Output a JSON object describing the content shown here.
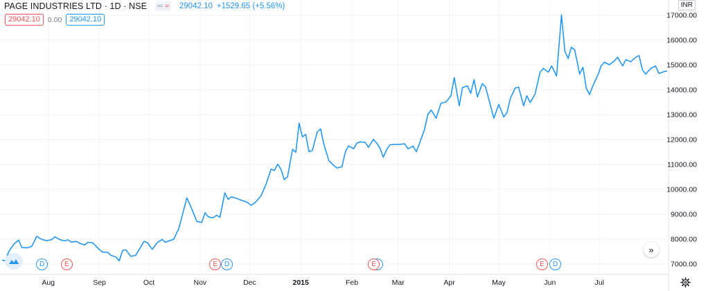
{
  "header": {
    "symbol": "PAGE INDUSTRIES LTD · 1D · NSE",
    "last_value": "29042.10",
    "change": "+1529.65 (+5.56%)",
    "currency": "INR"
  },
  "legend_row": {
    "red_value": "29042.10",
    "zero_value": "0.00",
    "blue_value": "29042.10"
  },
  "icons": {
    "eye": "eye-toggle-icon",
    "indicator": "wave-icon",
    "logo": "cloud-logo-icon",
    "scroll": "double-chevron-right-icon",
    "settings": "gear-icon"
  },
  "colors": {
    "line": "#2196f3",
    "grid": "#f0f3fa",
    "axis_text": "#131722",
    "dividend": "#2196f3",
    "earnings": "#ef5350"
  },
  "scroll_label": "»",
  "event_markers": [
    {
      "label": "D",
      "date": "2014-07-28"
    },
    {
      "label": "E",
      "date": "2014-08-12"
    },
    {
      "label": "E",
      "date": "2014-11-10"
    },
    {
      "label": "D",
      "date": "2014-11-17"
    },
    {
      "label": "D",
      "date": "2015-02-16"
    },
    {
      "label": "E",
      "date": "2015-02-14"
    },
    {
      "label": "E",
      "date": "2015-05-27"
    },
    {
      "label": "D",
      "date": "2015-06-04"
    }
  ],
  "chart_data": {
    "type": "line",
    "title": "",
    "xlabel": "",
    "ylabel": "",
    "ylim": [
      6600,
      17600
    ],
    "grid": true,
    "y_ticks": [
      "7000.00",
      "8000.00",
      "9000.00",
      "10000.00",
      "11000.00",
      "12000.00",
      "13000.00",
      "14000.00",
      "15000.00",
      "16000.00",
      "17000.00"
    ],
    "x_ticks": [
      {
        "label": "Aug",
        "date": "2014-08-01"
      },
      {
        "label": "Sep",
        "date": "2014-09-01"
      },
      {
        "label": "Oct",
        "date": "2014-10-01"
      },
      {
        "label": "Nov",
        "date": "2014-11-01"
      },
      {
        "label": "Dec",
        "date": "2014-12-01"
      },
      {
        "label": "2015",
        "date": "2015-01-01"
      },
      {
        "label": "Feb",
        "date": "2015-02-01"
      },
      {
        "label": "Mar",
        "date": "2015-03-01"
      },
      {
        "label": "Apr",
        "date": "2015-04-01"
      },
      {
        "label": "May",
        "date": "2015-05-01"
      },
      {
        "label": "Jun",
        "date": "2015-06-01"
      },
      {
        "label": "Jul",
        "date": "2015-07-01"
      }
    ],
    "series": [
      {
        "color": "#2196f3",
        "points": [
          [
            "2014-07-04",
            7150
          ],
          [
            "2014-07-06",
            7120
          ],
          [
            "2014-07-08",
            7480
          ],
          [
            "2014-07-11",
            7780
          ],
          [
            "2014-07-14",
            7950
          ],
          [
            "2014-07-16",
            7650
          ],
          [
            "2014-07-19",
            7640
          ],
          [
            "2014-07-22",
            7700
          ],
          [
            "2014-07-25",
            8100
          ],
          [
            "2014-07-28",
            7980
          ],
          [
            "2014-07-31",
            7930
          ],
          [
            "2014-08-03",
            7970
          ],
          [
            "2014-08-05",
            8080
          ],
          [
            "2014-08-08",
            7970
          ],
          [
            "2014-08-11",
            7920
          ],
          [
            "2014-08-13",
            7960
          ],
          [
            "2014-08-15",
            7870
          ],
          [
            "2014-08-18",
            7900
          ],
          [
            "2014-08-20",
            7820
          ],
          [
            "2014-08-23",
            7760
          ],
          [
            "2014-08-25",
            7860
          ],
          [
            "2014-08-28",
            7840
          ],
          [
            "2014-09-01",
            7570
          ],
          [
            "2014-09-03",
            7470
          ],
          [
            "2014-09-06",
            7460
          ],
          [
            "2014-09-08",
            7340
          ],
          [
            "2014-09-11",
            7270
          ],
          [
            "2014-09-13",
            7120
          ],
          [
            "2014-09-15",
            7530
          ],
          [
            "2014-09-17",
            7560
          ],
          [
            "2014-09-20",
            7300
          ],
          [
            "2014-09-23",
            7340
          ],
          [
            "2014-09-25",
            7560
          ],
          [
            "2014-09-28",
            7900
          ],
          [
            "2014-09-30",
            7850
          ],
          [
            "2014-10-03",
            7580
          ],
          [
            "2014-10-06",
            7850
          ],
          [
            "2014-10-09",
            7980
          ],
          [
            "2014-10-11",
            7860
          ],
          [
            "2014-10-13",
            7920
          ],
          [
            "2014-10-16",
            7980
          ],
          [
            "2014-10-19",
            8400
          ],
          [
            "2014-10-21",
            8900
          ],
          [
            "2014-10-24",
            9650
          ],
          [
            "2014-10-27",
            9200
          ],
          [
            "2014-10-30",
            8700
          ],
          [
            "2014-11-02",
            8660
          ],
          [
            "2014-11-04",
            9050
          ],
          [
            "2014-11-06",
            8880
          ],
          [
            "2014-11-09",
            8850
          ],
          [
            "2014-11-11",
            8950
          ],
          [
            "2014-11-13",
            8870
          ],
          [
            "2014-11-16",
            9850
          ],
          [
            "2014-11-18",
            9590
          ],
          [
            "2014-11-20",
            9690
          ],
          [
            "2014-11-23",
            9630
          ],
          [
            "2014-11-26",
            9550
          ],
          [
            "2014-11-29",
            9490
          ],
          [
            "2014-12-02",
            9350
          ],
          [
            "2014-12-05",
            9500
          ],
          [
            "2014-12-08",
            9740
          ],
          [
            "2014-12-11",
            10200
          ],
          [
            "2014-12-14",
            10800
          ],
          [
            "2014-12-16",
            10750
          ],
          [
            "2014-12-18",
            11000
          ],
          [
            "2014-12-20",
            10800
          ],
          [
            "2014-12-22",
            10380
          ],
          [
            "2014-12-24",
            10500
          ],
          [
            "2014-12-27",
            11600
          ],
          [
            "2014-12-29",
            11480
          ],
          [
            "2014-12-31",
            12650
          ],
          [
            "2015-01-02",
            12100
          ],
          [
            "2015-01-04",
            12200
          ],
          [
            "2015-01-06",
            11500
          ],
          [
            "2015-01-08",
            11550
          ],
          [
            "2015-01-11",
            12300
          ],
          [
            "2015-01-13",
            12420
          ],
          [
            "2015-01-15",
            11800
          ],
          [
            "2015-01-18",
            11150
          ],
          [
            "2015-01-21",
            10950
          ],
          [
            "2015-01-23",
            10850
          ],
          [
            "2015-01-26",
            10900
          ],
          [
            "2015-01-28",
            11500
          ],
          [
            "2015-01-30",
            11740
          ],
          [
            "2015-02-02",
            11620
          ],
          [
            "2015-02-04",
            11850
          ],
          [
            "2015-02-06",
            11900
          ],
          [
            "2015-02-09",
            11880
          ],
          [
            "2015-02-11",
            11680
          ],
          [
            "2015-02-14",
            12000
          ],
          [
            "2015-02-16",
            11850
          ],
          [
            "2015-02-18",
            11650
          ],
          [
            "2015-02-20",
            11280
          ],
          [
            "2015-02-22",
            11580
          ],
          [
            "2015-02-24",
            11780
          ],
          [
            "2015-02-27",
            11800
          ],
          [
            "2015-03-02",
            11800
          ],
          [
            "2015-03-05",
            11820
          ],
          [
            "2015-03-07",
            11620
          ],
          [
            "2015-03-10",
            11730
          ],
          [
            "2015-03-12",
            11500
          ],
          [
            "2015-03-14",
            11850
          ],
          [
            "2015-03-17",
            12400
          ],
          [
            "2015-03-19",
            13000
          ],
          [
            "2015-03-21",
            13180
          ],
          [
            "2015-03-24",
            12850
          ],
          [
            "2015-03-27",
            13450
          ],
          [
            "2015-03-30",
            13500
          ],
          [
            "2015-04-02",
            13750
          ],
          [
            "2015-04-04",
            14480
          ],
          [
            "2015-04-07",
            13350
          ],
          [
            "2015-04-09",
            14080
          ],
          [
            "2015-04-12",
            14150
          ],
          [
            "2015-04-14",
            13850
          ],
          [
            "2015-04-16",
            14400
          ],
          [
            "2015-04-18",
            13700
          ],
          [
            "2015-04-21",
            14240
          ],
          [
            "2015-04-23",
            14100
          ],
          [
            "2015-04-25",
            13600
          ],
          [
            "2015-04-28",
            12850
          ],
          [
            "2015-05-01",
            13400
          ],
          [
            "2015-05-04",
            12900
          ],
          [
            "2015-05-06",
            13080
          ],
          [
            "2015-05-08",
            13650
          ],
          [
            "2015-05-11",
            14060
          ],
          [
            "2015-05-13",
            14100
          ],
          [
            "2015-05-16",
            13350
          ],
          [
            "2015-05-18",
            13750
          ],
          [
            "2015-05-20",
            13480
          ],
          [
            "2015-05-23",
            13820
          ],
          [
            "2015-05-26",
            14700
          ],
          [
            "2015-05-28",
            14850
          ],
          [
            "2015-05-31",
            14700
          ],
          [
            "2015-06-02",
            14950
          ],
          [
            "2015-06-05",
            14550
          ],
          [
            "2015-06-07",
            16200
          ],
          [
            "2015-06-08",
            17000
          ],
          [
            "2015-06-10",
            15550
          ],
          [
            "2015-06-12",
            15250
          ],
          [
            "2015-06-14",
            15700
          ],
          [
            "2015-06-16",
            15600
          ],
          [
            "2015-06-19",
            14620
          ],
          [
            "2015-06-21",
            14900
          ],
          [
            "2015-06-23",
            14050
          ],
          [
            "2015-06-25",
            13800
          ],
          [
            "2015-06-27",
            14150
          ],
          [
            "2015-06-30",
            14580
          ],
          [
            "2015-07-02",
            14950
          ],
          [
            "2015-07-04",
            15100
          ],
          [
            "2015-07-07",
            15000
          ],
          [
            "2015-07-10",
            15150
          ],
          [
            "2015-07-12",
            15300
          ],
          [
            "2015-07-15",
            14950
          ],
          [
            "2015-07-17",
            15200
          ],
          [
            "2015-07-20",
            15120
          ],
          [
            "2015-07-23",
            15300
          ],
          [
            "2015-07-25",
            15370
          ],
          [
            "2015-07-27",
            14800
          ],
          [
            "2015-07-29",
            14620
          ],
          [
            "2015-08-01",
            14850
          ],
          [
            "2015-08-04",
            14950
          ],
          [
            "2015-08-06",
            14650
          ],
          [
            "2015-08-09",
            14720
          ],
          [
            "2015-08-11",
            14750
          ]
        ]
      }
    ]
  }
}
